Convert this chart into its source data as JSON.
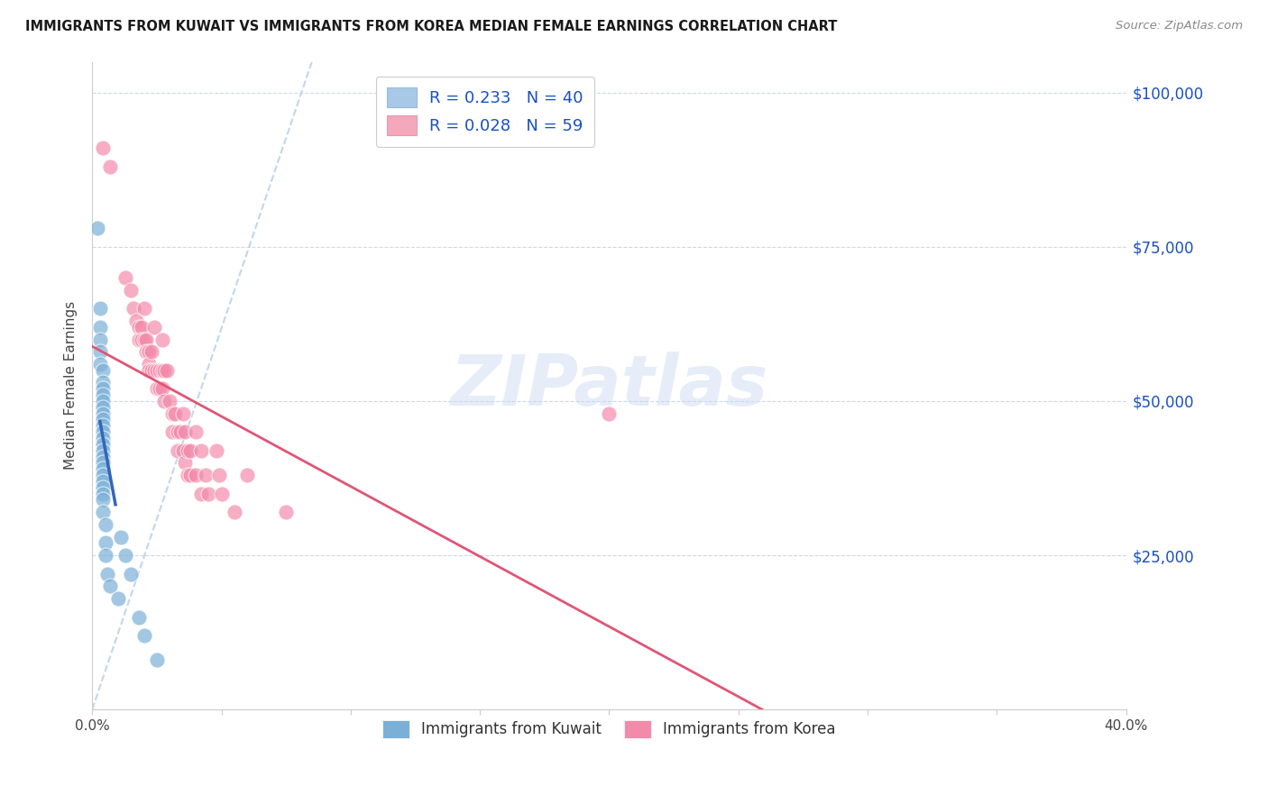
{
  "title": "IMMIGRANTS FROM KUWAIT VS IMMIGRANTS FROM KOREA MEDIAN FEMALE EARNINGS CORRELATION CHART",
  "source": "Source: ZipAtlas.com",
  "ylabel": "Median Female Earnings",
  "xlim": [
    0.0,
    0.4
  ],
  "ylim": [
    0,
    105000
  ],
  "watermark": "ZIPatlas",
  "kuwait_scatter_color": "#7ab0d8",
  "korea_scatter_color": "#f48aaa",
  "kuwait_line_color": "#3366bb",
  "korea_line_color": "#e05575",
  "diagonal_color": "#b8cfe8",
  "legend_patch_kuwait": "#a8c8e8",
  "legend_patch_korea": "#f4a8bc",
  "legend_text_color": "#1a50c0",
  "ytick_color": "#1a50c0",
  "kuwait_points": [
    [
      0.002,
      78000
    ],
    [
      0.003,
      65000
    ],
    [
      0.003,
      62000
    ],
    [
      0.003,
      60000
    ],
    [
      0.003,
      58000
    ],
    [
      0.003,
      56000
    ],
    [
      0.004,
      55000
    ],
    [
      0.004,
      53000
    ],
    [
      0.004,
      52000
    ],
    [
      0.004,
      51000
    ],
    [
      0.004,
      50000
    ],
    [
      0.004,
      49000
    ],
    [
      0.004,
      48000
    ],
    [
      0.004,
      47000
    ],
    [
      0.004,
      46000
    ],
    [
      0.004,
      45000
    ],
    [
      0.004,
      44000
    ],
    [
      0.004,
      43000
    ],
    [
      0.004,
      42000
    ],
    [
      0.004,
      41000
    ],
    [
      0.004,
      40000
    ],
    [
      0.004,
      39000
    ],
    [
      0.004,
      38000
    ],
    [
      0.004,
      37000
    ],
    [
      0.004,
      36000
    ],
    [
      0.004,
      35000
    ],
    [
      0.004,
      34000
    ],
    [
      0.004,
      32000
    ],
    [
      0.005,
      30000
    ],
    [
      0.005,
      27000
    ],
    [
      0.005,
      25000
    ],
    [
      0.006,
      22000
    ],
    [
      0.007,
      20000
    ],
    [
      0.01,
      18000
    ],
    [
      0.011,
      28000
    ],
    [
      0.013,
      25000
    ],
    [
      0.015,
      22000
    ],
    [
      0.018,
      15000
    ],
    [
      0.02,
      12000
    ],
    [
      0.025,
      8000
    ]
  ],
  "korea_points": [
    [
      0.004,
      91000
    ],
    [
      0.007,
      88000
    ],
    [
      0.013,
      70000
    ],
    [
      0.015,
      68000
    ],
    [
      0.016,
      65000
    ],
    [
      0.017,
      63000
    ],
    [
      0.018,
      62000
    ],
    [
      0.018,
      60000
    ],
    [
      0.019,
      62000
    ],
    [
      0.019,
      60000
    ],
    [
      0.02,
      65000
    ],
    [
      0.02,
      60000
    ],
    [
      0.021,
      60000
    ],
    [
      0.021,
      58000
    ],
    [
      0.022,
      58000
    ],
    [
      0.022,
      56000
    ],
    [
      0.022,
      55000
    ],
    [
      0.023,
      58000
    ],
    [
      0.023,
      55000
    ],
    [
      0.024,
      62000
    ],
    [
      0.024,
      55000
    ],
    [
      0.025,
      55000
    ],
    [
      0.025,
      52000
    ],
    [
      0.026,
      55000
    ],
    [
      0.026,
      52000
    ],
    [
      0.027,
      60000
    ],
    [
      0.027,
      55000
    ],
    [
      0.027,
      52000
    ],
    [
      0.028,
      55000
    ],
    [
      0.028,
      50000
    ],
    [
      0.029,
      55000
    ],
    [
      0.03,
      50000
    ],
    [
      0.031,
      48000
    ],
    [
      0.031,
      45000
    ],
    [
      0.032,
      48000
    ],
    [
      0.033,
      45000
    ],
    [
      0.033,
      42000
    ],
    [
      0.034,
      45000
    ],
    [
      0.035,
      48000
    ],
    [
      0.035,
      42000
    ],
    [
      0.036,
      45000
    ],
    [
      0.036,
      40000
    ],
    [
      0.037,
      42000
    ],
    [
      0.037,
      38000
    ],
    [
      0.038,
      42000
    ],
    [
      0.038,
      38000
    ],
    [
      0.04,
      45000
    ],
    [
      0.04,
      38000
    ],
    [
      0.042,
      42000
    ],
    [
      0.042,
      35000
    ],
    [
      0.044,
      38000
    ],
    [
      0.045,
      35000
    ],
    [
      0.048,
      42000
    ],
    [
      0.049,
      38000
    ],
    [
      0.05,
      35000
    ],
    [
      0.055,
      32000
    ],
    [
      0.06,
      38000
    ],
    [
      0.075,
      32000
    ],
    [
      0.2,
      48000
    ]
  ]
}
